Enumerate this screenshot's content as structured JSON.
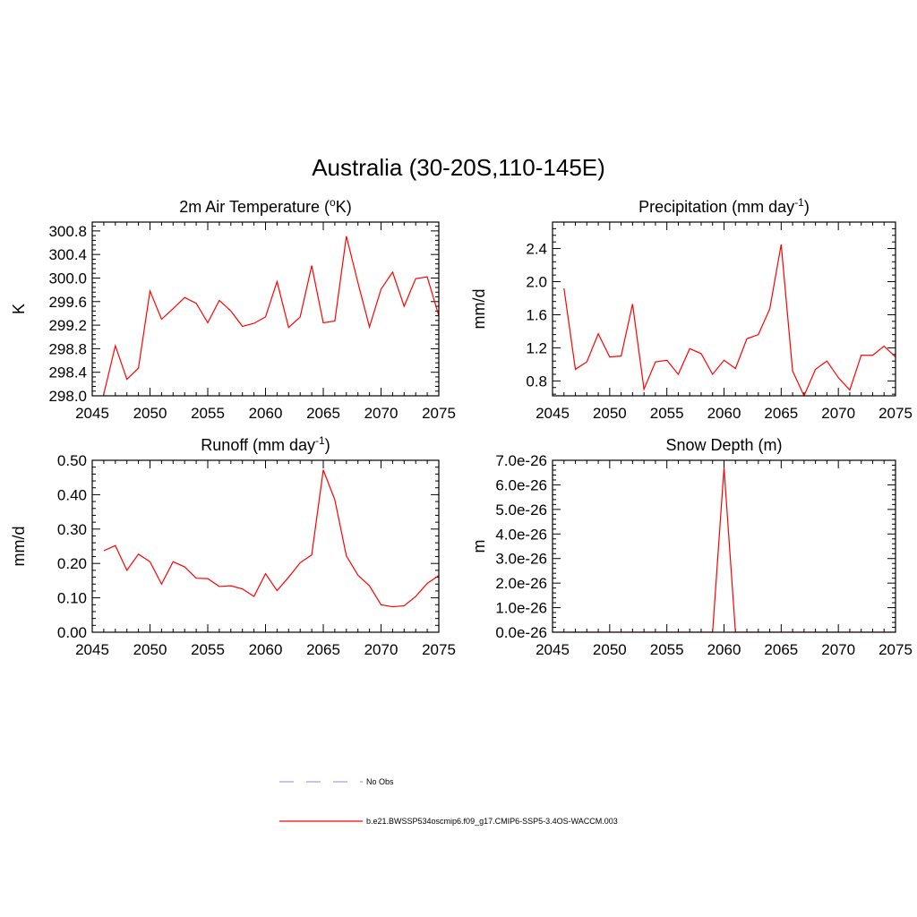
{
  "figure": {
    "title": "Australia (30-20S,110-145E)"
  },
  "legend": [
    {
      "label": "No Obs",
      "color": "#a0a0e0",
      "dash": true
    },
    {
      "label": "b.e21.BWSSP534oscmip6.f09_g17.CMIP6-SSP5-3.4OS-WACCM.003",
      "color": "#ff0000",
      "dash": false
    }
  ],
  "chart_data": [
    {
      "type": "line",
      "title": "2m Air Temperature (",
      "title_sup": "o",
      "title_end": "K)",
      "ylabel": "K",
      "xlim": [
        2045,
        2075
      ],
      "ylim": [
        298.0,
        300.95
      ],
      "xticks": [
        2045,
        2050,
        2055,
        2060,
        2065,
        2070,
        2075
      ],
      "yticks": [
        298.0,
        298.4,
        298.8,
        299.2,
        299.6,
        300.0,
        300.4,
        300.8
      ],
      "ytick_labels": [
        "298.0",
        "298.4",
        "298.8",
        "299.2",
        "299.6",
        "300.0",
        "300.4",
        "300.8"
      ],
      "color": "#ff0000",
      "x": [
        2046,
        2047,
        2048,
        2049,
        2050,
        2051,
        2052,
        2053,
        2054,
        2055,
        2056,
        2057,
        2058,
        2059,
        2060,
        2061,
        2062,
        2063,
        2064,
        2065,
        2066,
        2067,
        2068,
        2069,
        2070,
        2071,
        2072,
        2073,
        2074,
        2075
      ],
      "y": [
        298.03,
        298.85,
        298.28,
        298.47,
        299.78,
        299.3,
        299.48,
        299.67,
        299.57,
        299.24,
        299.62,
        299.44,
        299.18,
        299.23,
        299.34,
        299.94,
        299.16,
        299.34,
        300.21,
        299.24,
        299.27,
        300.71,
        299.92,
        299.17,
        299.81,
        300.1,
        299.52,
        299.99,
        300.02,
        299.36
      ]
    },
    {
      "type": "line",
      "title": "Precipitation (mm day",
      "title_sup": "-1",
      "title_end": ")",
      "ylabel": "mm/d",
      "xlim": [
        2045,
        2075
      ],
      "ylim": [
        0.62,
        2.72
      ],
      "xticks": [
        2045,
        2050,
        2055,
        2060,
        2065,
        2070,
        2075
      ],
      "yticks": [
        0.8,
        1.2,
        1.6,
        2.0,
        2.4
      ],
      "ytick_labels": [
        "0.8",
        "1.2",
        "1.6",
        "2.0",
        "2.4"
      ],
      "color": "#ff0000",
      "x": [
        2046,
        2047,
        2048,
        2049,
        2050,
        2051,
        2052,
        2053,
        2054,
        2055,
        2056,
        2057,
        2058,
        2059,
        2060,
        2061,
        2062,
        2063,
        2064,
        2065,
        2066,
        2067,
        2068,
        2069,
        2070,
        2071,
        2072,
        2073,
        2074,
        2075
      ],
      "y": [
        1.92,
        0.94,
        1.03,
        1.37,
        1.09,
        1.1,
        1.73,
        0.7,
        1.03,
        1.05,
        0.88,
        1.19,
        1.13,
        0.88,
        1.05,
        0.95,
        1.31,
        1.36,
        1.67,
        2.45,
        0.92,
        0.62,
        0.94,
        1.04,
        0.84,
        0.69,
        1.11,
        1.11,
        1.22,
        1.09
      ]
    },
    {
      "type": "line",
      "title": "Runoff (mm day",
      "title_sup": "-1",
      "title_end": ")",
      "ylabel": "mm/d",
      "xlim": [
        2045,
        2075
      ],
      "ylim": [
        0.0,
        0.5
      ],
      "xticks": [
        2045,
        2050,
        2055,
        2060,
        2065,
        2070,
        2075
      ],
      "yticks": [
        0.0,
        0.1,
        0.2,
        0.3,
        0.4,
        0.5
      ],
      "ytick_labels": [
        "0.00",
        "0.10",
        "0.20",
        "0.30",
        "0.40",
        "0.50"
      ],
      "color": "#ff0000",
      "x": [
        2046,
        2047,
        2048,
        2049,
        2050,
        2051,
        2052,
        2053,
        2054,
        2055,
        2056,
        2057,
        2058,
        2059,
        2060,
        2061,
        2062,
        2063,
        2064,
        2065,
        2066,
        2067,
        2068,
        2069,
        2070,
        2071,
        2072,
        2073,
        2074,
        2075
      ],
      "y": [
        0.237,
        0.252,
        0.18,
        0.227,
        0.205,
        0.14,
        0.205,
        0.19,
        0.157,
        0.156,
        0.133,
        0.135,
        0.126,
        0.104,
        0.17,
        0.121,
        0.16,
        0.202,
        0.225,
        0.472,
        0.385,
        0.222,
        0.166,
        0.135,
        0.08,
        0.074,
        0.077,
        0.104,
        0.142,
        0.165
      ]
    },
    {
      "type": "line",
      "title": "Snow Depth (m)",
      "title_sup": "",
      "title_end": "",
      "ylabel": "m",
      "xlim": [
        2045,
        2075
      ],
      "ylim": [
        0.0,
        7e-26
      ],
      "xticks": [
        2045,
        2050,
        2055,
        2060,
        2065,
        2070,
        2075
      ],
      "yticks": [
        0.0,
        1e-26,
        2e-26,
        3e-26,
        4e-26,
        5e-26,
        6e-26,
        7e-26
      ],
      "ytick_labels": [
        "0.0e-26",
        "1.0e-26",
        "2.0e-26",
        "3.0e-26",
        "4.0e-26",
        "5.0e-26",
        "6.0e-26",
        "7.0e-26"
      ],
      "color": "#ff0000",
      "x": [
        2045,
        2046,
        2047,
        2048,
        2049,
        2050,
        2051,
        2052,
        2053,
        2054,
        2055,
        2056,
        2057,
        2058,
        2059,
        2060,
        2061,
        2062,
        2063,
        2064,
        2065,
        2066,
        2067,
        2068,
        2069,
        2070,
        2071,
        2072,
        2073,
        2074,
        2075
      ],
      "y": [
        0,
        0,
        0,
        0,
        0,
        0,
        0,
        0,
        0,
        0,
        0,
        0,
        0,
        0,
        0,
        6.7e-26,
        0,
        0,
        0,
        0,
        0,
        0,
        0,
        0,
        0,
        0,
        0,
        0,
        0,
        0,
        0
      ]
    }
  ]
}
